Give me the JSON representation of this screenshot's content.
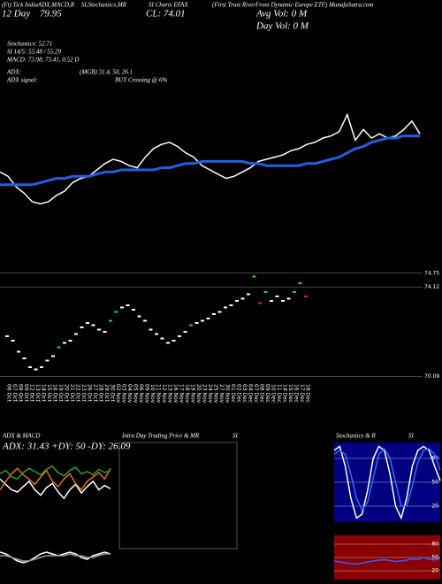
{
  "header": {
    "lines": [
      "(Ft) Tick IndiaADX,MACD,R",
      "SI,Stochastics,MR",
      "SI Charts EFAX",
      "(First Trust RiverFront Dynamic Europe ETF) MunafaSutra.com",
      "12 Day",
      "79.95",
      "CL: 74.01",
      "Avg Vol: 0  M",
      "Day Vol: 0  M",
      "Stochastics: 52.71",
      "SI 14/5: 55.48 / 55.29",
      "MACD: 73.98, 73.41, 0.52  D",
      "ADX:",
      "(MGB) 31.4, 50, 26.1",
      "ADX  signal:",
      "BUY Crossing @ 6%"
    ]
  },
  "chart_data": [
    {
      "type": "line",
      "ylim": [
        70,
        75
      ],
      "categories": [
        "06 Oct",
        "07 Oct",
        "08 Oct",
        "09 Oct",
        "12 Oct",
        "13 Oct",
        "14 Oct",
        "15 Oct",
        "16 Oct",
        "19 Oct",
        "20 Oct",
        "21 Oct",
        "22 Oct",
        "23 Oct",
        "26 Oct",
        "27 Oct",
        "28 Oct",
        "29 Oct",
        "30 Oct",
        "02 Nov",
        "03 Nov",
        "04 Nov",
        "05 Nov",
        "06 Nov",
        "09 Nov",
        "10 Nov",
        "11 Nov",
        "12 Nov",
        "13 Nov",
        "16 Nov",
        "17 Nov",
        "18 Nov",
        "19 Nov",
        "20 Nov",
        "23 Nov",
        "24 Nov",
        "25 Nov",
        "27 Nov",
        "30 Nov",
        "01 Dec",
        "02 Dec",
        "03 Dec",
        "04 Dec",
        "07 Dec",
        "08 Dec",
        "09 Dec",
        "10 Dec",
        "11 Dec",
        "14 Dec",
        "15 Dec",
        "16 Dec",
        "17 Dec",
        "18 Dec"
      ],
      "series": [
        {
          "color": "#ffffff",
          "values": [
            71.9,
            71.7,
            71.2,
            70.9,
            70.5,
            70.4,
            70.5,
            70.8,
            71.0,
            71.4,
            71.6,
            71.7,
            72.0,
            72.3,
            72.5,
            72.4,
            72.2,
            72.1,
            72.6,
            73.0,
            73.2,
            73.3,
            73.1,
            72.8,
            72.6,
            72.2,
            72.0,
            71.8,
            71.6,
            71.7,
            71.9,
            72.1,
            72.4,
            72.5,
            72.6,
            72.7,
            72.9,
            73.0,
            73.2,
            73.3,
            73.5,
            73.6,
            73.8,
            74.6,
            73.4,
            73.9,
            73.5,
            73.7,
            73.5,
            73.6,
            73.9,
            74.3,
            73.7
          ]
        },
        {
          "color": "#1f5fe0",
          "values": [
            71.3,
            71.3,
            71.3,
            71.3,
            71.3,
            71.4,
            71.5,
            71.6,
            71.6,
            71.7,
            71.7,
            71.7,
            71.8,
            71.9,
            71.9,
            72.0,
            72.0,
            72.0,
            72.0,
            72.0,
            72.1,
            72.1,
            72.2,
            72.3,
            72.3,
            72.4,
            72.4,
            72.4,
            72.4,
            72.4,
            72.4,
            72.3,
            72.3,
            72.2,
            72.2,
            72.2,
            72.2,
            72.2,
            72.3,
            72.3,
            72.4,
            72.5,
            72.6,
            72.8,
            73.0,
            73.1,
            73.3,
            73.4,
            73.5,
            73.5,
            73.6,
            73.6,
            73.6
          ]
        }
      ]
    },
    {
      "type": "candle",
      "ylim": [
        69.9,
        74.9
      ],
      "yticks": [
        {
          "value": 74.75,
          "label": "74.75"
        },
        74.12,
        70.09
      ],
      "color": "#ffffff",
      "values": [
        71.9,
        71.7,
        71.2,
        70.9,
        70.5,
        70.4,
        70.5,
        70.8,
        71.0,
        71.4,
        71.6,
        71.7,
        72.0,
        72.3,
        72.5,
        72.4,
        72.2,
        72.1,
        72.6,
        73.0,
        73.2,
        73.3,
        73.1,
        72.8,
        72.6,
        72.2,
        72.0,
        71.8,
        71.6,
        71.7,
        71.9,
        72.1,
        72.4,
        72.5,
        72.6,
        72.7,
        72.9,
        73.0,
        73.2,
        73.3,
        73.5,
        73.6,
        73.8,
        74.6,
        73.4,
        73.9,
        73.5,
        73.7,
        73.5,
        73.6,
        73.9,
        74.3,
        73.7
      ]
    },
    {
      "type": "line",
      "title": "ADX  & MACD",
      "subtitle": "ADX: 31.43  +DY: 50  -DY: 26.09",
      "ylim": [
        0,
        70
      ],
      "series": [
        {
          "color": "#ffffff",
          "values": [
            40,
            35,
            30,
            28,
            33,
            38,
            30,
            25,
            32,
            36,
            28,
            22,
            30,
            35,
            27,
            33,
            38,
            30,
            34,
            31
          ]
        },
        {
          "color": "#e07020",
          "values": [
            30,
            38,
            45,
            50,
            44,
            40,
            35,
            42,
            48,
            38,
            33,
            40,
            45,
            36,
            30,
            38,
            42,
            46,
            40,
            50
          ]
        },
        {
          "color": "#30a030",
          "values": [
            45,
            48,
            42,
            40,
            46,
            50,
            47,
            44,
            49,
            52,
            46,
            43,
            48,
            51,
            45,
            47,
            44,
            49,
            46,
            48
          ]
        }
      ]
    },
    {
      "type": "line",
      "ylim": [
        -1,
        1
      ],
      "series": [
        {
          "color": "#ffffff",
          "values": [
            0.3,
            0.2,
            0.0,
            -0.2,
            -0.3,
            -0.2,
            0.0,
            0.2,
            0.3,
            0.2,
            0.1,
            0.2,
            0.3,
            0.2,
            0.0,
            -0.1,
            0.1,
            0.2,
            0.3,
            0.2
          ]
        },
        {
          "color": "#999999",
          "values": [
            0.1,
            0.1,
            0.0,
            -0.1,
            -0.2,
            -0.2,
            -0.1,
            0.0,
            0.1,
            0.1,
            0.1,
            0.1,
            0.2,
            0.1,
            0.1,
            0.0,
            0.0,
            0.1,
            0.2,
            0.2
          ]
        }
      ]
    },
    {
      "type": "box",
      "title": "Intra Day Trading Price  & MR",
      "subtitle": "SI"
    },
    {
      "type": "line",
      "title": "Stochastics & R",
      "subtitle": "SI",
      "ylim": [
        0,
        100
      ],
      "yticks": [
        80,
        50,
        20
      ],
      "background": "#000080",
      "series": [
        {
          "color": "#ffffff",
          "values": [
            90,
            95,
            70,
            30,
            5,
            10,
            40,
            80,
            95,
            90,
            60,
            20,
            5,
            30,
            70,
            90,
            95,
            90,
            70,
            52
          ]
        },
        {
          "color": "#2f6fff",
          "values": [
            85,
            90,
            85,
            60,
            30,
            15,
            25,
            55,
            85,
            92,
            80,
            50,
            20,
            20,
            45,
            75,
            90,
            92,
            85,
            65
          ]
        }
      ]
    },
    {
      "type": "line",
      "ylim": [
        0,
        100
      ],
      "yticks": [
        80,
        50,
        20
      ],
      "background": "#8b0000",
      "series": [
        {
          "color": "#3060ff",
          "values": [
            42,
            40,
            38,
            36,
            35,
            37,
            40,
            42,
            44,
            45,
            43,
            41,
            42,
            44,
            47,
            45,
            50,
            46,
            44,
            48
          ]
        }
      ]
    }
  ]
}
